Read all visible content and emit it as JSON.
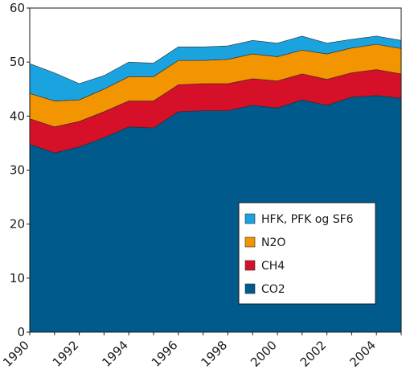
{
  "chart_data": {
    "type": "area",
    "stacked": true,
    "title": "",
    "xlabel": "",
    "ylabel": "",
    "x": [
      1990,
      1991,
      1992,
      1993,
      1994,
      1995,
      1996,
      1997,
      1998,
      1999,
      2000,
      2001,
      2002,
      2003,
      2004,
      2005
    ],
    "xlim": [
      1990,
      2005
    ],
    "ylim": [
      0,
      60
    ],
    "y_ticks": [
      0,
      10,
      20,
      30,
      40,
      50,
      60
    ],
    "x_ticks": [
      1990,
      1992,
      1994,
      1996,
      1998,
      2000,
      2002,
      2004
    ],
    "grid": false,
    "legend_position": "lower-right",
    "legend_order": [
      "HFK, PFK og SF6",
      "N2O",
      "CH4",
      "CO2"
    ],
    "series": [
      {
        "name": "CO2",
        "color": "#005b8c",
        "values": [
          34.8,
          33.2,
          34.3,
          36.0,
          38.0,
          37.8,
          40.8,
          41.0,
          41.0,
          42.0,
          41.5,
          43.0,
          42.0,
          43.5,
          43.8,
          43.3
        ]
      },
      {
        "name": "CH4",
        "color": "#d7102a",
        "values": [
          4.7,
          4.8,
          4.7,
          4.8,
          4.8,
          5.0,
          5.0,
          5.0,
          5.0,
          4.9,
          5.0,
          4.8,
          4.8,
          4.5,
          4.8,
          4.5
        ]
      },
      {
        "name": "N2O",
        "color": "#f39500",
        "values": [
          4.7,
          4.8,
          4.0,
          4.2,
          4.5,
          4.5,
          4.5,
          4.3,
          4.5,
          4.6,
          4.5,
          4.4,
          4.7,
          4.6,
          4.7,
          4.7
        ]
      },
      {
        "name": "HFK, PFK og SF6",
        "color": "#1ba3e0",
        "values": [
          5.5,
          5.2,
          3.0,
          2.5,
          2.7,
          2.5,
          2.5,
          2.5,
          2.5,
          2.5,
          2.5,
          2.6,
          2.0,
          1.6,
          1.5,
          1.5
        ]
      }
    ]
  }
}
